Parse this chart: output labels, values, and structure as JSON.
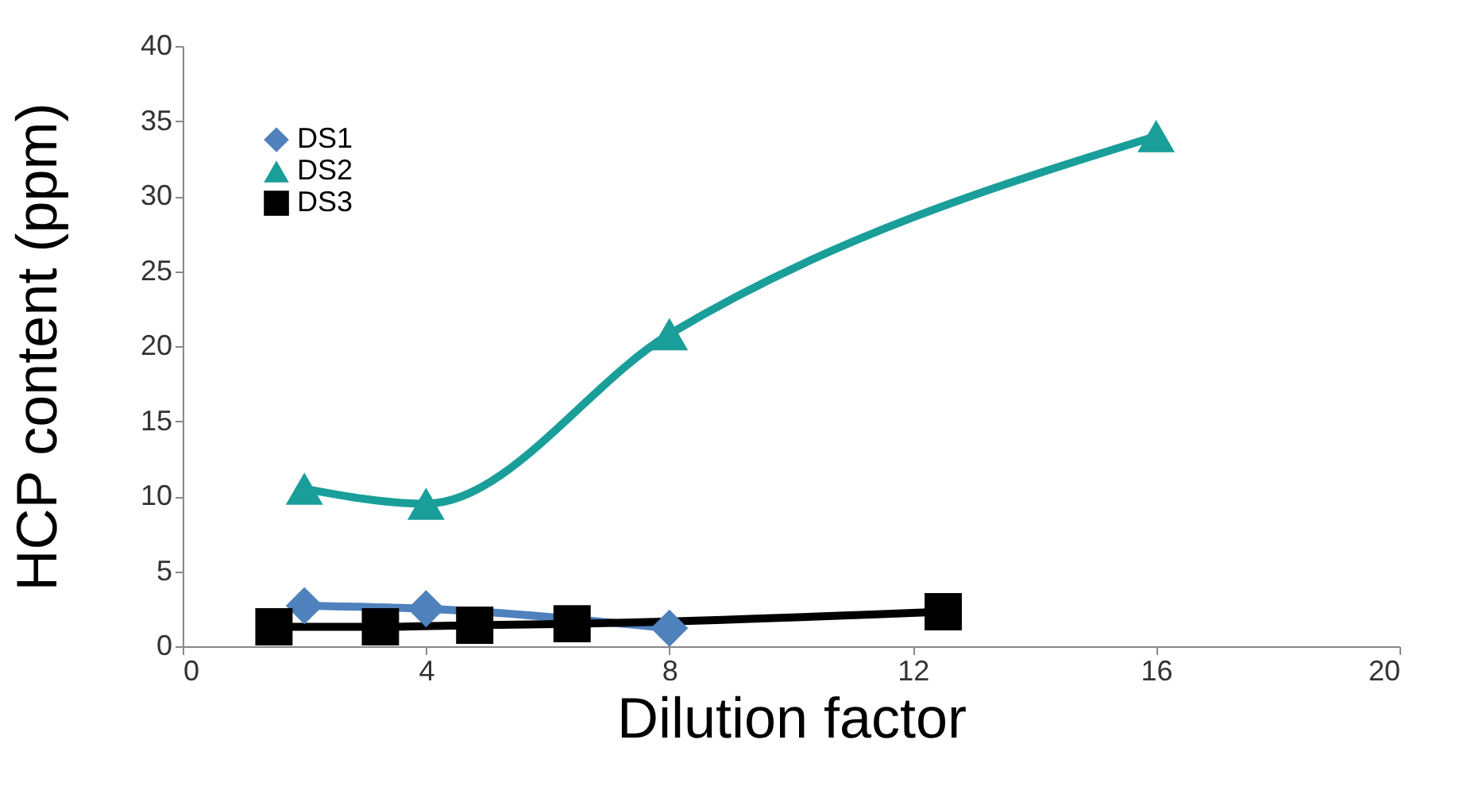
{
  "chart_data": {
    "type": "line",
    "xlabel": "Dilution factor",
    "ylabel": "HCP content (ppm)",
    "xlim": [
      0,
      20
    ],
    "xticks": [
      0,
      4,
      8,
      12,
      16,
      20
    ],
    "ylim": [
      0,
      40
    ],
    "yticks": [
      0,
      5,
      10,
      15,
      20,
      25,
      30,
      35,
      40
    ],
    "grid": false,
    "legend": "top left",
    "line_style": "solid",
    "series": [
      {
        "name": "DS1",
        "color": "#4f81bd",
        "marker": "diamond",
        "x": [
          2,
          4,
          8
        ],
        "values": [
          2.7,
          2.5,
          1.2
        ]
      },
      {
        "name": "DS2",
        "color": "#1a9e9a",
        "marker": "triangle",
        "x": [
          2,
          4,
          8,
          16
        ],
        "values": [
          10.5,
          9.5,
          20.8,
          34
        ]
      },
      {
        "name": "DS3",
        "color": "#000000",
        "marker": "square",
        "x": [
          1.5,
          3.25,
          4.8,
          6.4,
          12.5
        ],
        "values": [
          1.3,
          1.3,
          1.4,
          1.5,
          2.3
        ]
      }
    ]
  }
}
